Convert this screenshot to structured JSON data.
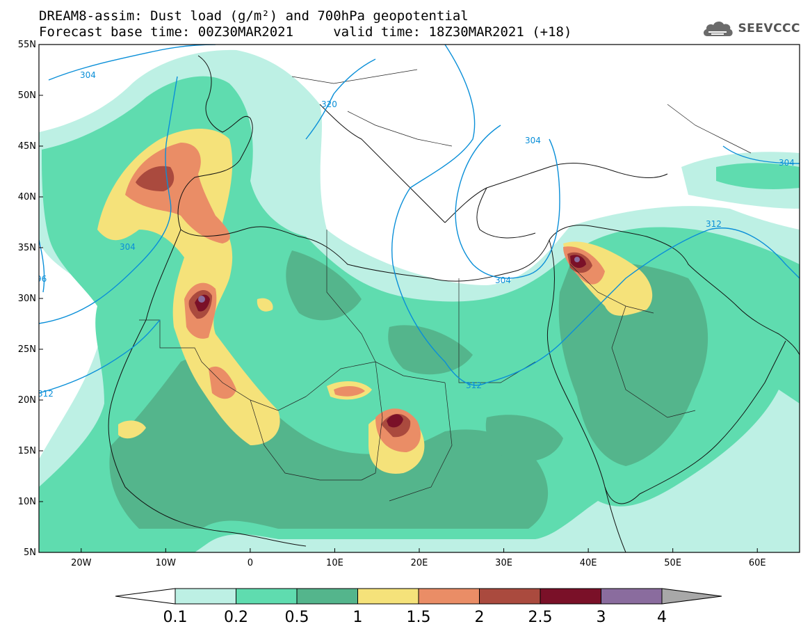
{
  "header": {
    "title_line1": "DREAM8-assim: Dust load (g/m²) and 700hPa geopotential",
    "title_line2": "Forecast base time: 00Z30MAR2021     valid time: 18Z30MAR2021 (+18)"
  },
  "logo": {
    "text": "SEEVCCC",
    "icon": "cloud-icon"
  },
  "map": {
    "lon_range": [
      -25,
      65
    ],
    "lat_range": [
      5,
      55
    ],
    "lat_ticks": [
      "55N",
      "50N",
      "45N",
      "40N",
      "35N",
      "30N",
      "25N",
      "20N",
      "15N",
      "10N",
      "5N"
    ],
    "lon_ticks": [
      "20W",
      "10W",
      "0",
      "10E",
      "20E",
      "30E",
      "40E",
      "50E",
      "60E"
    ],
    "contour_color": "#0a8fd8",
    "contour_labels": [
      "304",
      "320",
      "304",
      "304",
      "304",
      "312",
      "304",
      "312",
      "312",
      "304",
      "96"
    ]
  },
  "colorbar": {
    "labels": [
      "0.1",
      "0.2",
      "0.5",
      "1",
      "1.5",
      "2",
      "2.5",
      "3",
      "4"
    ],
    "colors": [
      "#ffffff",
      "#bdf0e4",
      "#5fdcaf",
      "#54b58c",
      "#f5e27a",
      "#ea8d66",
      "#aa4a3e",
      "#7a1028",
      "#8a6c9e",
      "#a8a8a8"
    ]
  }
}
